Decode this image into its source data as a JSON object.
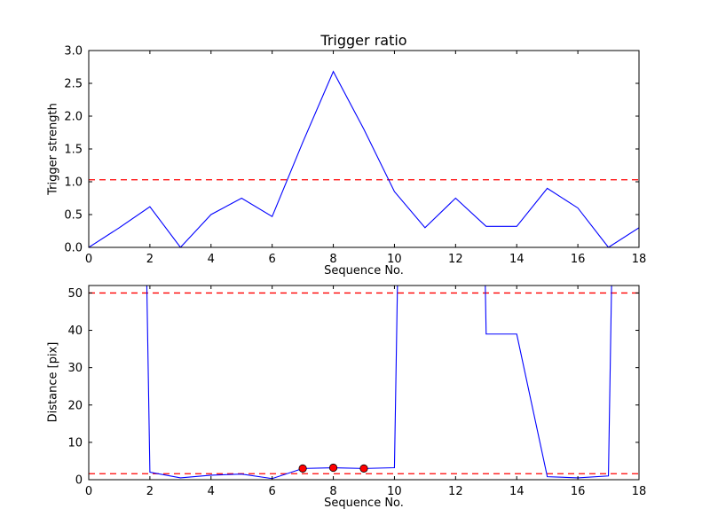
{
  "figure": {
    "background": "#ffffff",
    "line_color": "#0000ff",
    "threshold_color": "#ff0000",
    "marker_face": "#ff0000",
    "marker_edge": "#000000",
    "axes_color": "#000000",
    "tick_font_px": 13
  },
  "chart_data": [
    {
      "type": "line",
      "name": "trigger-strength-plot",
      "title": "Trigger ratio",
      "xlabel": "Sequence No.",
      "ylabel": "Trigger strength",
      "xlim": [
        0,
        18
      ],
      "ylim": [
        0,
        3.0
      ],
      "xticks": [
        0,
        2,
        4,
        6,
        8,
        10,
        12,
        14,
        16,
        18
      ],
      "xtick_labels": [
        "0",
        "2",
        "4",
        "6",
        "8",
        "10",
        "12",
        "14",
        "16",
        "18"
      ],
      "yticks": [
        0,
        0.5,
        1.0,
        1.5,
        2.0,
        2.5,
        3.0
      ],
      "ytick_labels": [
        "0.0",
        "0.5",
        "1.0",
        "1.5",
        "2.0",
        "2.5",
        "3.0"
      ],
      "grid": false,
      "legend": null,
      "x": [
        0,
        1,
        2,
        3,
        4,
        5,
        6,
        7,
        8,
        9,
        10,
        11,
        12,
        13,
        14,
        15,
        16,
        17,
        18
      ],
      "y": [
        0.0,
        0.3,
        0.62,
        0.0,
        0.5,
        0.75,
        0.47,
        1.6,
        2.68,
        1.8,
        0.85,
        0.3,
        0.75,
        0.32,
        0.32,
        0.9,
        0.6,
        0.0,
        0.3
      ],
      "thresholds": [
        1.03
      ]
    },
    {
      "type": "line",
      "name": "distance-plot",
      "title": "",
      "xlabel": "Sequence No.",
      "ylabel": "Distance [pix]",
      "xlim": [
        0,
        18
      ],
      "ylim": [
        0,
        52
      ],
      "xticks": [
        0,
        2,
        4,
        6,
        8,
        10,
        12,
        14,
        16,
        18
      ],
      "xtick_labels": [
        "0",
        "2",
        "4",
        "6",
        "8",
        "10",
        "12",
        "14",
        "16",
        "18"
      ],
      "yticks": [
        0,
        10,
        20,
        30,
        40,
        50
      ],
      "ytick_labels": [
        "0",
        "10",
        "20",
        "30",
        "40",
        "50"
      ],
      "grid": false,
      "legend": null,
      "x": [
        0,
        1,
        2,
        3,
        4,
        5,
        6,
        7,
        8,
        9,
        10,
        11,
        12,
        13,
        14,
        15,
        16,
        17,
        18
      ],
      "y": [
        500,
        500,
        2.0,
        0.5,
        1.2,
        1.5,
        0.3,
        3.0,
        3.2,
        3.0,
        3.2,
        500,
        500,
        39,
        39,
        0.8,
        0.5,
        1.0,
        500
      ],
      "thresholds": [
        50,
        1.6
      ],
      "markers": {
        "x": [
          7,
          8,
          9
        ],
        "y": [
          3.0,
          3.2,
          3.0
        ]
      }
    }
  ]
}
